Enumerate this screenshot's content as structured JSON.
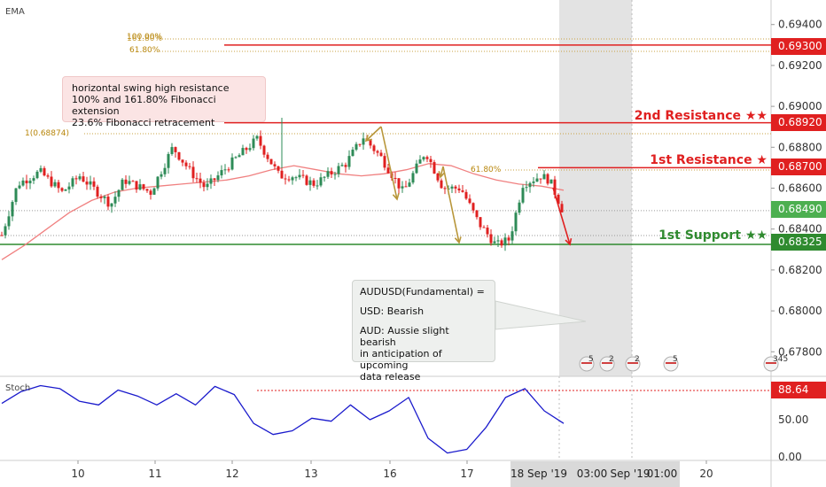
{
  "indicators": {
    "ema_label": "EMA",
    "stoch_label": "Stoch"
  },
  "colors": {
    "resistance": "#e02020",
    "support": "#2f8a2f",
    "fib": "#c8a040",
    "ema": "#f08080",
    "stoch": "#1a1acc",
    "bull": "#2e8b57",
    "bear": "#e02020",
    "current": "#4caf50",
    "arrow_bear": "#e02020",
    "arrow_fib": "#b8963a"
  },
  "annotations": {
    "swing_box": {
      "line1": "horizontal swing high resistance",
      "line2": "100% and 161.80% Fibonacci extension",
      "line3": "23.6% Fibonacci retracement"
    },
    "fundamental_box": {
      "title": "AUDUSD(Fundamental) =",
      "usd": "USD: Bearish",
      "aud_line1": "AUD: Aussie slight bearish",
      "aud_line2": "in anticipation of upcoming",
      "aud_line3": "data release"
    },
    "fib_labels": {
      "top1": "100.00%",
      "top2": "161.80%",
      "top3": "61.80%",
      "one": "1(0.68874)",
      "mid": "61.80%"
    }
  },
  "levels": {
    "second_resistance": {
      "label": "2nd Resistance ★★",
      "price": "0.68920",
      "value": 0.6892
    },
    "first_resistance": {
      "label": "1st Resistance ★",
      "price": "0.68700",
      "value": 0.687
    },
    "first_support": {
      "label": "1st Support ★★",
      "price": "0.68325",
      "value": 0.68325
    },
    "fib_top": {
      "price": "0.69300",
      "value": 0.693
    },
    "current": {
      "price": "0.68490",
      "value": 0.6849
    },
    "stoch_level": {
      "price": "88.64",
      "value": 88.64
    }
  },
  "chart_data": {
    "type": "candlestick",
    "price_axis": {
      "ticks": [
        "0.69400",
        "0.69200",
        "0.69000",
        "0.68800",
        "0.68600",
        "0.68400",
        "0.68200",
        "0.68000",
        "0.67800"
      ],
      "tick_values": [
        0.694,
        0.692,
        0.69,
        0.688,
        0.686,
        0.684,
        0.682,
        0.68,
        0.678
      ],
      "ylim": [
        0.6768,
        0.6952
      ]
    },
    "stoch_axis": {
      "ticks": [
        "50.00",
        "0.00"
      ],
      "tick_values": [
        50,
        0
      ],
      "ylim": [
        -5,
        105
      ]
    },
    "time_axis": {
      "labels": [
        "10",
        "11",
        "12",
        "13",
        "16",
        "17",
        "20"
      ],
      "highlight_labels": [
        "18 Sep '19",
        "03:00",
        "Sep '19",
        "01:00"
      ]
    },
    "series": [
      {
        "name": "EMA",
        "values": [
          0.6825,
          0.6832,
          0.684,
          0.6848,
          0.6854,
          0.6858,
          0.686,
          0.6861,
          0.6862,
          0.6863,
          0.6864,
          0.6866,
          0.6869,
          0.6871,
          0.6869,
          0.6867,
          0.6866,
          0.6867,
          0.6869,
          0.6872,
          0.6871,
          0.6867,
          0.6864,
          0.6862,
          0.6861,
          0.6859
        ]
      },
      {
        "name": "Stoch",
        "values": [
          72,
          88,
          96,
          92,
          75,
          70,
          90,
          82,
          70,
          85,
          70,
          95,
          84,
          45,
          30,
          35,
          52,
          48,
          70,
          50,
          62,
          80,
          25,
          5,
          10,
          40,
          80,
          92,
          62,
          45
        ]
      }
    ],
    "events": [
      "5",
      "2",
      "2",
      "5",
      "345"
    ]
  }
}
